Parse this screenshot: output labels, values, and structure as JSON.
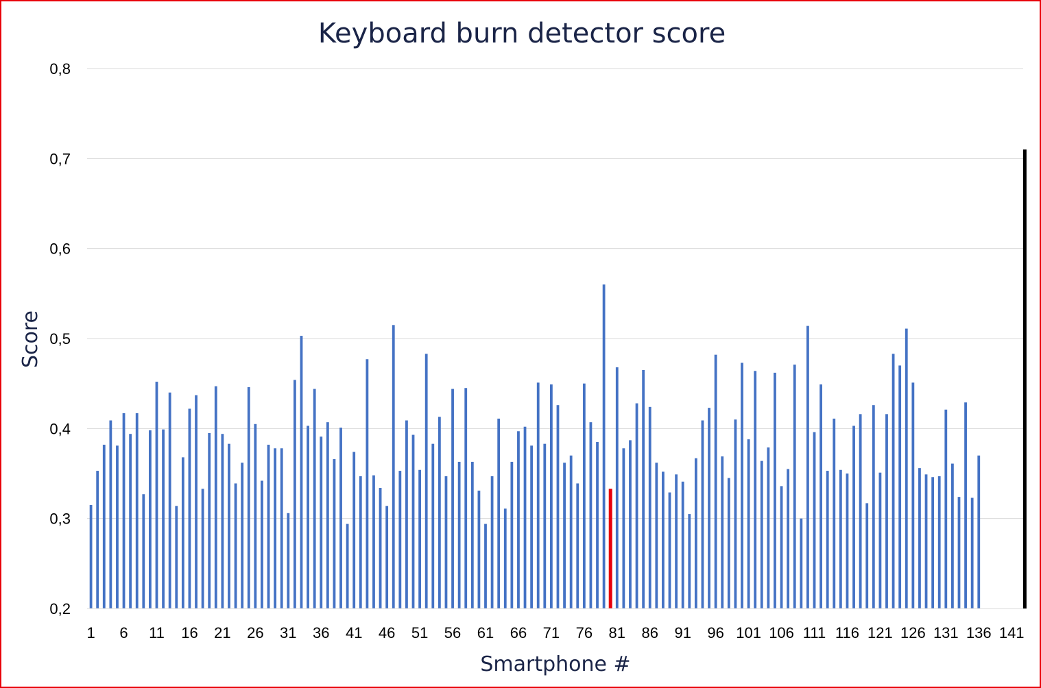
{
  "chart_data": {
    "type": "bar",
    "title": "Keyboard burn detector score",
    "xlabel": "Smartphone #",
    "ylabel": "Score",
    "ylim": [
      0.2,
      0.8
    ],
    "yticks": [
      0.2,
      0.3,
      0.4,
      0.5,
      0.6,
      0.7,
      0.8
    ],
    "ytick_labels": [
      "0,2",
      "0,3",
      "0,4",
      "0,5",
      "0,6",
      "0,7",
      "0,8"
    ],
    "x_count": 143,
    "xtick_labels": [
      "1",
      "6",
      "11",
      "16",
      "21",
      "26",
      "31",
      "36",
      "41",
      "46",
      "51",
      "56",
      "61",
      "66",
      "71",
      "76",
      "81",
      "86",
      "91",
      "96",
      "101",
      "106",
      "111",
      "116",
      "121",
      "126",
      "131",
      "136",
      "141"
    ],
    "grid": true,
    "default_color": "#4472c4",
    "highlights": [
      {
        "index": 79,
        "color": "#e8000b"
      },
      {
        "index": 142,
        "color": "#000000"
      }
    ],
    "values": [
      0.315,
      0.353,
      0.382,
      0.409,
      0.381,
      0.417,
      0.394,
      0.417,
      0.327,
      0.398,
      0.452,
      0.399,
      0.44,
      0.314,
      0.368,
      0.422,
      0.437,
      0.333,
      0.395,
      0.447,
      0.394,
      0.383,
      0.339,
      0.362,
      0.446,
      0.405,
      0.342,
      0.382,
      0.378,
      0.378,
      0.306,
      0.454,
      0.503,
      0.403,
      0.444,
      0.391,
      0.407,
      0.366,
      0.401,
      0.294,
      0.374,
      0.347,
      0.477,
      0.348,
      0.334,
      0.314,
      0.515,
      0.353,
      0.409,
      0.393,
      0.354,
      0.483,
      0.383,
      0.413,
      0.347,
      0.444,
      0.363,
      0.445,
      0.363,
      0.331,
      0.294,
      0.347,
      0.411,
      0.311,
      0.363,
      0.397,
      0.402,
      0.381,
      0.451,
      0.383,
      0.449,
      0.426,
      0.362,
      0.37,
      0.339,
      0.45,
      0.407,
      0.385,
      0.56,
      0.333,
      0.468,
      0.378,
      0.387,
      0.428,
      0.465,
      0.424,
      0.362,
      0.352,
      0.329,
      0.349,
      0.341,
      0.305,
      0.367,
      0.409,
      0.423,
      0.482,
      0.369,
      0.345,
      0.41,
      0.473,
      0.388,
      0.464,
      0.364,
      0.379,
      0.462,
      0.336,
      0.355,
      0.471,
      0.3,
      0.514,
      0.396,
      0.449,
      0.353,
      0.411,
      0.354,
      0.35,
      0.403,
      0.416,
      0.317,
      0.426,
      0.351,
      0.416,
      0.483,
      0.47,
      0.511,
      0.451,
      0.356,
      0.349,
      0.346,
      0.347,
      0.421,
      0.361,
      0.324,
      0.429,
      0.323,
      0.37,
      null,
      null,
      null,
      null,
      null,
      null,
      0.71
    ]
  }
}
